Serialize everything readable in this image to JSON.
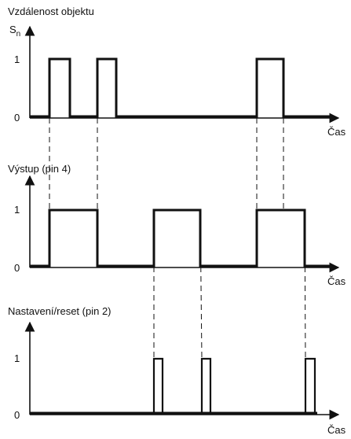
{
  "panel1": {
    "title": "Vzdálenost objektu",
    "sn_main": "S",
    "sn_sub": "n",
    "one": "1",
    "zero": "0",
    "time": "Čas"
  },
  "panel2": {
    "title": "Výstup (pin 4)",
    "one": "1",
    "zero": "0",
    "time": "Čas"
  },
  "panel3": {
    "title": "Nastavení/reset (pin 2)",
    "one": "1",
    "zero": "0",
    "time": "Čas"
  }
}
